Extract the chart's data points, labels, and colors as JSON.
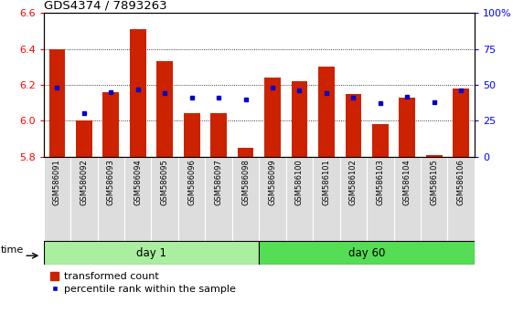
{
  "title": "GDS4374 / 7893263",
  "samples": [
    "GSM586091",
    "GSM586092",
    "GSM586093",
    "GSM586094",
    "GSM586095",
    "GSM586096",
    "GSM586097",
    "GSM586098",
    "GSM586099",
    "GSM586100",
    "GSM586101",
    "GSM586102",
    "GSM586103",
    "GSM586104",
    "GSM586105",
    "GSM586106"
  ],
  "bar_values": [
    6.4,
    6.0,
    6.16,
    6.51,
    6.33,
    6.04,
    6.04,
    5.85,
    6.24,
    6.22,
    6.3,
    6.15,
    5.98,
    6.13,
    5.81,
    6.18
  ],
  "percentile_values": [
    48,
    30,
    45,
    47,
    44,
    41,
    41,
    40,
    48,
    46,
    44,
    41,
    37,
    42,
    38,
    46
  ],
  "baseline": 5.8,
  "ylim_left": [
    5.8,
    6.6
  ],
  "ylim_right": [
    0,
    100
  ],
  "yticks_left": [
    5.8,
    6.0,
    6.2,
    6.4,
    6.6
  ],
  "yticks_right": [
    0,
    25,
    50,
    75,
    100
  ],
  "bar_color": "#CC2200",
  "marker_color": "#0000CC",
  "day1_group": 8,
  "day60_group": 8,
  "day1_label": "day 1",
  "day60_label": "day 60",
  "day1_color": "#AAEEA0",
  "day60_color": "#55DD55",
  "time_label": "time",
  "legend_bar_label": "transformed count",
  "legend_marker_label": "percentile rank within the sample",
  "bg_color": "#FFFFFF",
  "tick_area_color": "#CCCCCC",
  "grid_ticks": [
    6.0,
    6.2,
    6.4
  ]
}
